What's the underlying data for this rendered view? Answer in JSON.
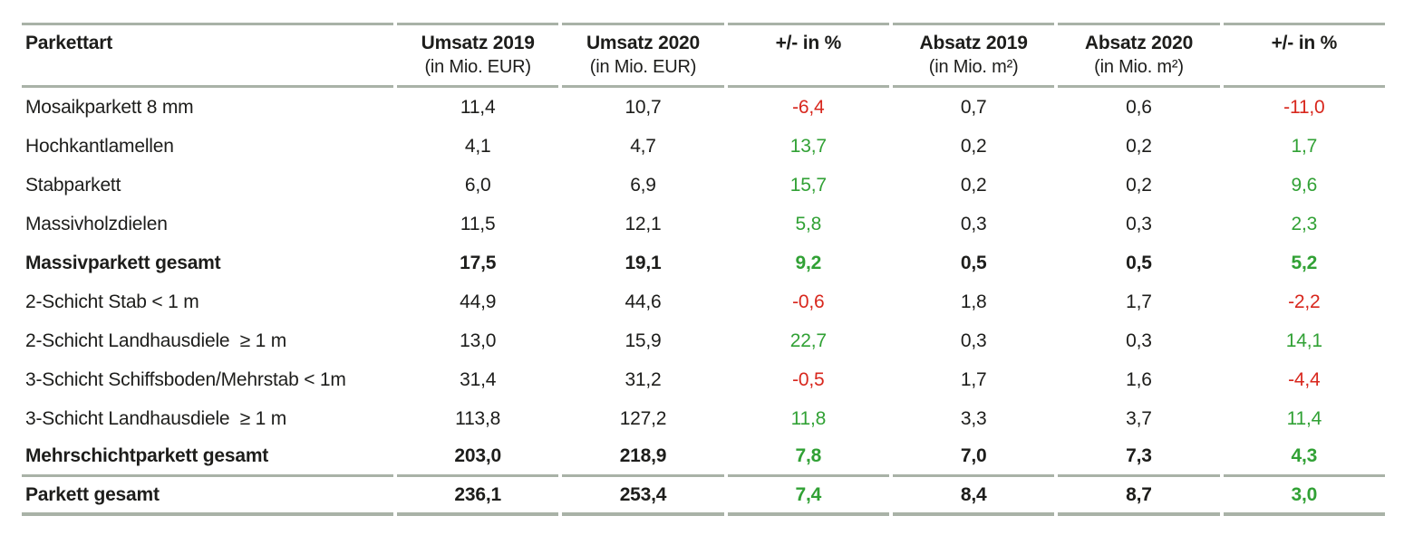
{
  "colors": {
    "positive_green": "#31a135",
    "negative_red": "#d8271d",
    "rule_line": "#a9b2a7",
    "text_black": "#1d1d1b",
    "background": "#ffffff"
  },
  "chart_data": {
    "type": "table",
    "title": "",
    "units": {
      "umsatz": "Mio. EUR",
      "absatz": "Mio. m²",
      "change": "%"
    },
    "columns": [
      {
        "label": "Parkettart",
        "sub": ""
      },
      {
        "label": "Umsatz 2019",
        "sub": "(in Mio. EUR)"
      },
      {
        "label": "Umsatz 2020",
        "sub": "(in Mio. EUR)"
      },
      {
        "label": "+/- in %",
        "sub": ""
      },
      {
        "label": "Absatz 2019",
        "sub": "(in Mio. m²)"
      },
      {
        "label": "Absatz 2020",
        "sub": "(in Mio. m²)"
      },
      {
        "label": "+/- in %",
        "sub": ""
      }
    ],
    "rows": [
      {
        "name": "Mosaikparkett 8 mm",
        "umsatz_2019": "11,4",
        "umsatz_2020": "10,7",
        "umsatz_change": "-6,4",
        "absatz_2019": "0,7",
        "absatz_2020": "0,6",
        "absatz_change": "-11,0",
        "is_total": false
      },
      {
        "name": "Hochkantlamellen",
        "umsatz_2019": "4,1",
        "umsatz_2020": "4,7",
        "umsatz_change": "13,7",
        "absatz_2019": "0,2",
        "absatz_2020": "0,2",
        "absatz_change": "1,7",
        "is_total": false
      },
      {
        "name": "Stabparkett",
        "umsatz_2019": "6,0",
        "umsatz_2020": "6,9",
        "umsatz_change": "15,7",
        "absatz_2019": "0,2",
        "absatz_2020": "0,2",
        "absatz_change": "9,6",
        "is_total": false
      },
      {
        "name": "Massivholzdielen",
        "umsatz_2019": "11,5",
        "umsatz_2020": "12,1",
        "umsatz_change": "5,8",
        "absatz_2019": "0,3",
        "absatz_2020": "0,3",
        "absatz_change": "2,3",
        "is_total": false
      },
      {
        "name": "Massivparkett gesamt",
        "umsatz_2019": "17,5",
        "umsatz_2020": "19,1",
        "umsatz_change": "9,2",
        "absatz_2019": "0,5",
        "absatz_2020": "0,5",
        "absatz_change": "5,2",
        "is_total": true
      },
      {
        "name": "2-Schicht Stab < 1 m",
        "umsatz_2019": "44,9",
        "umsatz_2020": "44,6",
        "umsatz_change": "-0,6",
        "absatz_2019": "1,8",
        "absatz_2020": "1,7",
        "absatz_change": "-2,2",
        "is_total": false
      },
      {
        "name": "2-Schicht Landhausdiele  ≥ 1 m",
        "umsatz_2019": "13,0",
        "umsatz_2020": "15,9",
        "umsatz_change": "22,7",
        "absatz_2019": "0,3",
        "absatz_2020": "0,3",
        "absatz_change": "14,1",
        "is_total": false
      },
      {
        "name": "3-Schicht Schiffsboden/Mehrstab < 1m",
        "umsatz_2019": "31,4",
        "umsatz_2020": "31,2",
        "umsatz_change": "-0,5",
        "absatz_2019": "1,7",
        "absatz_2020": "1,6",
        "absatz_change": "-4,4",
        "is_total": false
      },
      {
        "name": "3-Schicht Landhausdiele  ≥ 1 m",
        "umsatz_2019": "113,8",
        "umsatz_2020": "127,2",
        "umsatz_change": "11,8",
        "absatz_2019": "3,3",
        "absatz_2020": "3,7",
        "absatz_change": "11,4",
        "is_total": false
      },
      {
        "name": "Mehrschichtparkett gesamt",
        "umsatz_2019": "203,0",
        "umsatz_2020": "218,9",
        "umsatz_change": "7,8",
        "absatz_2019": "7,0",
        "absatz_2020": "7,3",
        "absatz_change": "4,3",
        "is_total": true
      },
      {
        "name": "Parkett gesamt",
        "umsatz_2019": "236,1",
        "umsatz_2020": "253,4",
        "umsatz_change": "7,4",
        "absatz_2019": "8,4",
        "absatz_2020": "8,7",
        "absatz_change": "3,0",
        "is_total": true
      }
    ]
  }
}
